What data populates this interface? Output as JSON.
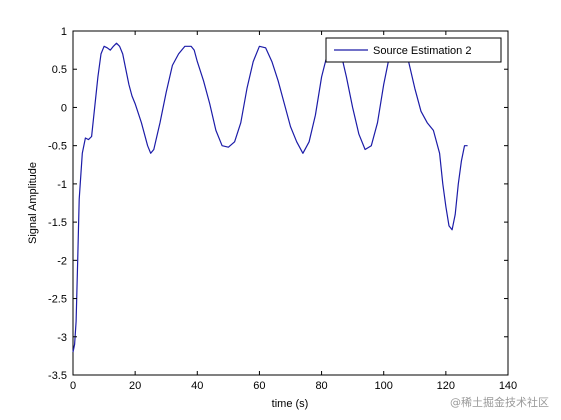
{
  "chart_data": {
    "type": "line",
    "title": "",
    "xlabel": "time (s)",
    "ylabel": "Signal Amplitude",
    "xlim": [
      0,
      140
    ],
    "ylim": [
      -3.5,
      1
    ],
    "xticks": [
      0,
      20,
      40,
      60,
      80,
      100,
      120,
      140
    ],
    "yticks": [
      1,
      0.5,
      0,
      -0.5,
      -1,
      -1.5,
      -2,
      -2.5,
      -3,
      -3.5
    ],
    "xtick_labels": [
      "0",
      "20",
      "40",
      "60",
      "80",
      "100",
      "120",
      "140"
    ],
    "ytick_labels": [
      "1",
      "0.5",
      "0",
      "-0.5",
      "-1",
      "-1.5",
      "-2",
      "-2.5",
      "-3",
      "-3.5"
    ],
    "grid": false,
    "legend_position": "top-right",
    "series": [
      {
        "name": "Source Estimation 2",
        "color": "#1c1ca8",
        "x": [
          0,
          0.5,
          1,
          1.5,
          2,
          3,
          4,
          5,
          6,
          8,
          9,
          10,
          11,
          12,
          13,
          14,
          15,
          16,
          17,
          18,
          19,
          20,
          22,
          24,
          25,
          26,
          28,
          30,
          32,
          34,
          36,
          38,
          39,
          40,
          42,
          44,
          46,
          48,
          50,
          52,
          54,
          56,
          58,
          60,
          62,
          64,
          66,
          68,
          70,
          72,
          74,
          76,
          78,
          80,
          82,
          84,
          86,
          88,
          90,
          92,
          94,
          96,
          98,
          100,
          102,
          104,
          106,
          108,
          110,
          112,
          114,
          116,
          118,
          119,
          120,
          121,
          122,
          123,
          124,
          125,
          126,
          127
        ],
        "y": [
          -3.2,
          -3.1,
          -2.8,
          -2.0,
          -1.2,
          -0.6,
          -0.4,
          -0.42,
          -0.38,
          0.4,
          0.7,
          0.8,
          0.78,
          0.75,
          0.8,
          0.84,
          0.8,
          0.7,
          0.5,
          0.3,
          0.15,
          0.05,
          -0.2,
          -0.5,
          -0.6,
          -0.55,
          -0.2,
          0.2,
          0.55,
          0.7,
          0.8,
          0.8,
          0.75,
          0.6,
          0.35,
          0.05,
          -0.3,
          -0.5,
          -0.52,
          -0.45,
          -0.2,
          0.25,
          0.6,
          0.8,
          0.78,
          0.6,
          0.35,
          0.05,
          -0.25,
          -0.45,
          -0.6,
          -0.45,
          -0.1,
          0.4,
          0.72,
          0.82,
          0.75,
          0.4,
          0.0,
          -0.35,
          -0.55,
          -0.5,
          -0.2,
          0.3,
          0.7,
          0.85,
          0.82,
          0.6,
          0.25,
          -0.05,
          -0.2,
          -0.3,
          -0.6,
          -1.0,
          -1.3,
          -1.55,
          -1.6,
          -1.4,
          -1.0,
          -0.7,
          -0.5,
          -0.5
        ]
      }
    ]
  },
  "watermark": "@稀土掘金技术社区"
}
